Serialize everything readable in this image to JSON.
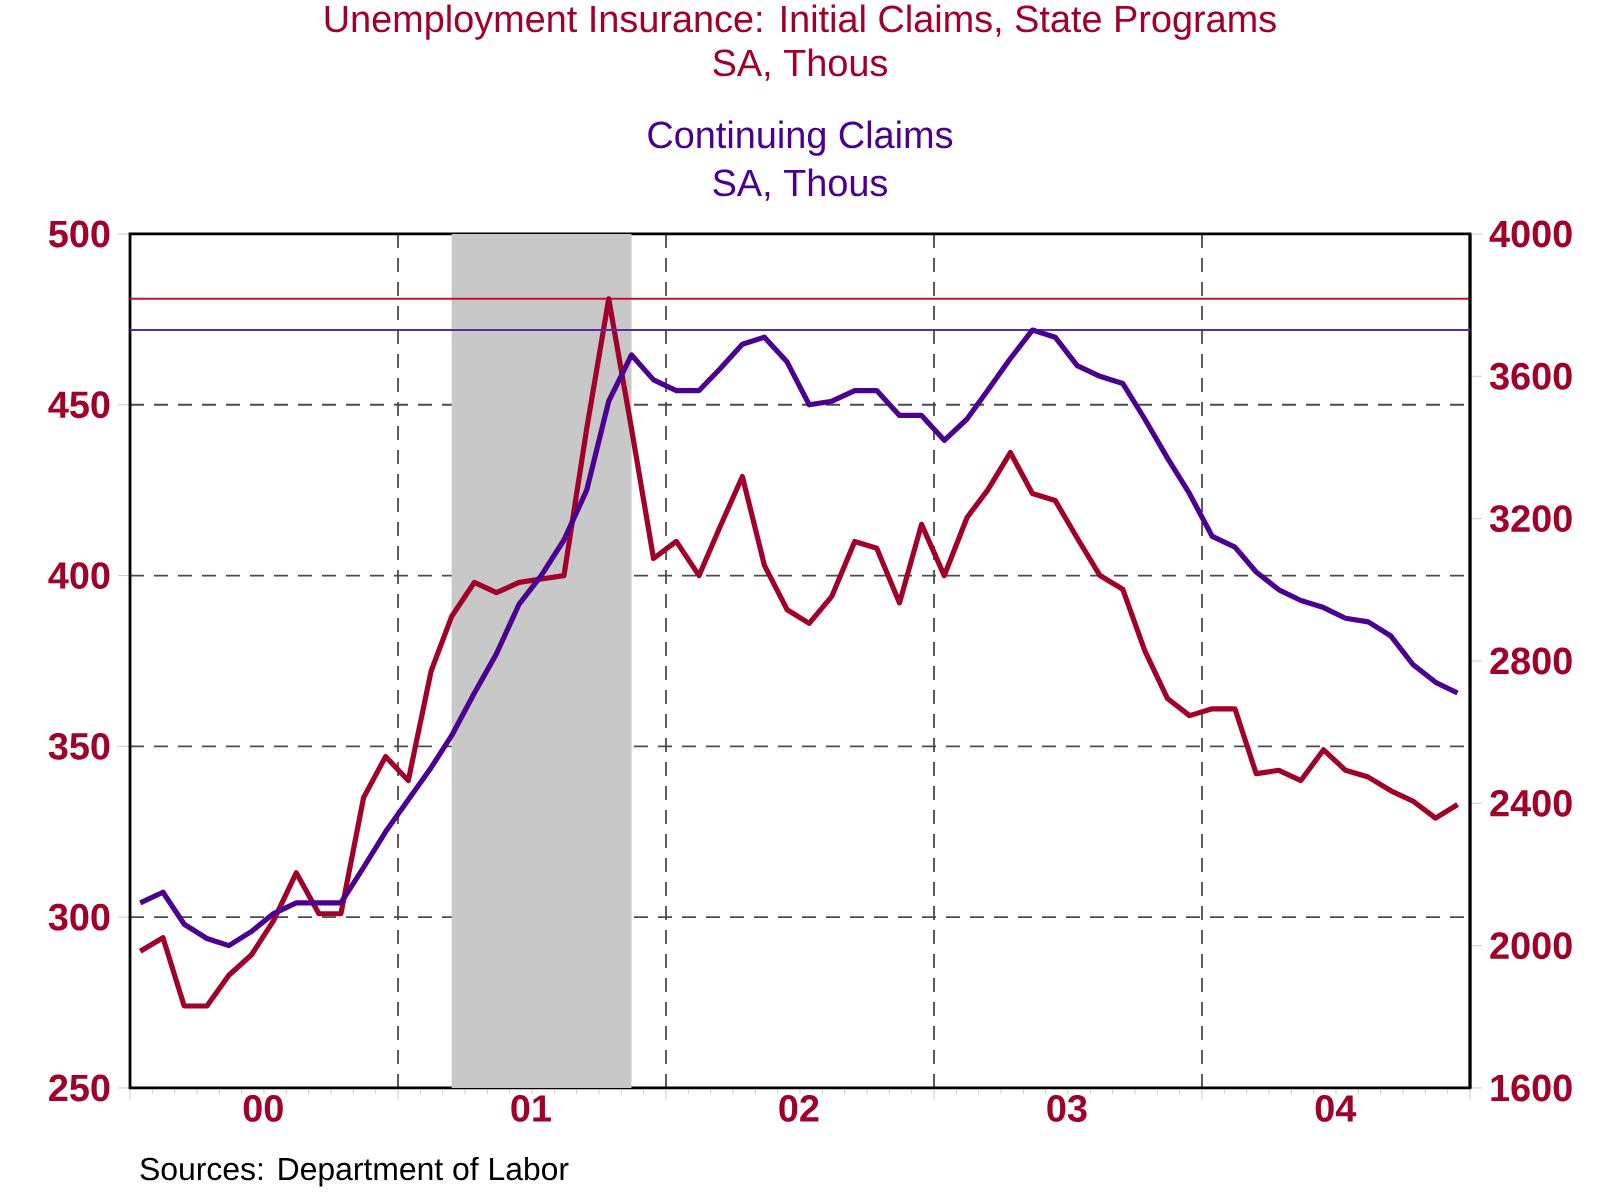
{
  "chart_data": {
    "type": "line",
    "x": [
      "2000-01-15",
      "2000-02-15",
      "2000-03-15",
      "2000-04-15",
      "2000-05-15",
      "2000-06-15",
      "2000-07-15",
      "2000-08-15",
      "2000-09-15",
      "2000-10-15",
      "2000-11-15",
      "2000-12-15",
      "2001-01-15",
      "2001-02-15",
      "2001-03-15",
      "2001-04-15",
      "2001-05-15",
      "2001-06-15",
      "2001-07-15",
      "2001-08-15",
      "2001-09-15",
      "2001-10-15",
      "2001-11-15",
      "2001-12-15",
      "2002-01-15",
      "2002-02-15",
      "2002-03-15",
      "2002-04-15",
      "2002-05-15",
      "2002-06-15",
      "2002-07-15",
      "2002-08-15",
      "2002-09-15",
      "2002-10-15",
      "2002-11-15",
      "2002-12-15",
      "2003-01-15",
      "2003-02-15",
      "2003-03-15",
      "2003-04-15",
      "2003-05-15",
      "2003-06-15",
      "2003-07-15",
      "2003-08-15",
      "2003-09-15",
      "2003-10-15",
      "2003-11-15",
      "2003-12-15",
      "2004-01-15",
      "2004-02-15",
      "2004-03-15",
      "2004-04-15",
      "2004-05-15",
      "2004-06-15",
      "2004-07-15",
      "2004-08-15",
      "2004-09-15",
      "2004-10-15",
      "2004-11-15",
      "2004-12-15"
    ],
    "series": [
      {
        "name": "Unemployment Insurance: Initial Claims, State Programs",
        "color": "#a0002a",
        "values": [
          290,
          294,
          274,
          274,
          283,
          289,
          299,
          313,
          301,
          301,
          335,
          347,
          340,
          372,
          388,
          398,
          395,
          398,
          399,
          400,
          443,
          481,
          443,
          405,
          410,
          400,
          414,
          429,
          403,
          390,
          386,
          394,
          410,
          408,
          392,
          415,
          400,
          417,
          425,
          436,
          424,
          422,
          411,
          400,
          396,
          378,
          364,
          359,
          361,
          361,
          342,
          343,
          340,
          349,
          343,
          341,
          337,
          334,
          329,
          333
        ]
      },
      {
        "name": "Continuing Claims",
        "color": "#4b0090",
        "axis": "y2",
        "values": [
          2120,
          2150,
          2060,
          2020,
          2000,
          2040,
          2090,
          2120,
          2120,
          2120,
          2220,
          2320,
          2410,
          2500,
          2590,
          2710,
          2820,
          2960,
          3040,
          3140,
          3280,
          3530,
          3660,
          3590,
          3560,
          3560,
          3620,
          3690,
          3710,
          3640,
          3520,
          3530,
          3560,
          3560,
          3490,
          3490,
          3420,
          3480,
          3560,
          3650,
          3730,
          3710,
          3630,
          3600,
          3580,
          3480,
          3370,
          3270,
          3150,
          3120,
          3050,
          3000,
          2970,
          2950,
          2920,
          2910,
          2870,
          2790,
          2740,
          2710
        ]
      }
    ],
    "xlim": [
      "2000-01-01",
      "2005-01-01"
    ],
    "xticks": [
      {
        "value": "2000-01-01",
        "label": null
      },
      {
        "value": "2000-07-01",
        "label": "00"
      },
      {
        "value": "2001-01-01",
        "label": null
      },
      {
        "value": "2001-07-01",
        "label": "01"
      },
      {
        "value": "2002-01-01",
        "label": null
      },
      {
        "value": "2002-07-01",
        "label": "02"
      },
      {
        "value": "2003-01-01",
        "label": null
      },
      {
        "value": "2003-07-01",
        "label": "03"
      },
      {
        "value": "2004-01-01",
        "label": null
      },
      {
        "value": "2004-07-01",
        "label": "04"
      },
      {
        "value": "2005-01-01",
        "label": null
      }
    ],
    "ylim": [
      250,
      500
    ],
    "yticks": [
      250,
      300,
      350,
      400,
      450,
      500
    ],
    "y2lim": [
      1600,
      4000
    ],
    "y2ticks": [
      1600,
      2000,
      2400,
      2800,
      3200,
      3600,
      4000
    ],
    "bands": [
      {
        "axis": "x",
        "from": "2001-03-15",
        "to": "2001-11-15",
        "color": "#c8c8c8"
      }
    ],
    "ref_lines": [
      {
        "axis": "y",
        "value": 481,
        "color": "#c8102e"
      },
      {
        "axis": "y2",
        "value": 3730,
        "color": "#5b2c9f"
      }
    ],
    "grid": true,
    "legend": "top",
    "marker": "none",
    "line_style": "solid",
    "annotations": [
      "SA, Thous",
      "SA, Thous",
      "Sources: Department of Labor"
    ]
  }
}
